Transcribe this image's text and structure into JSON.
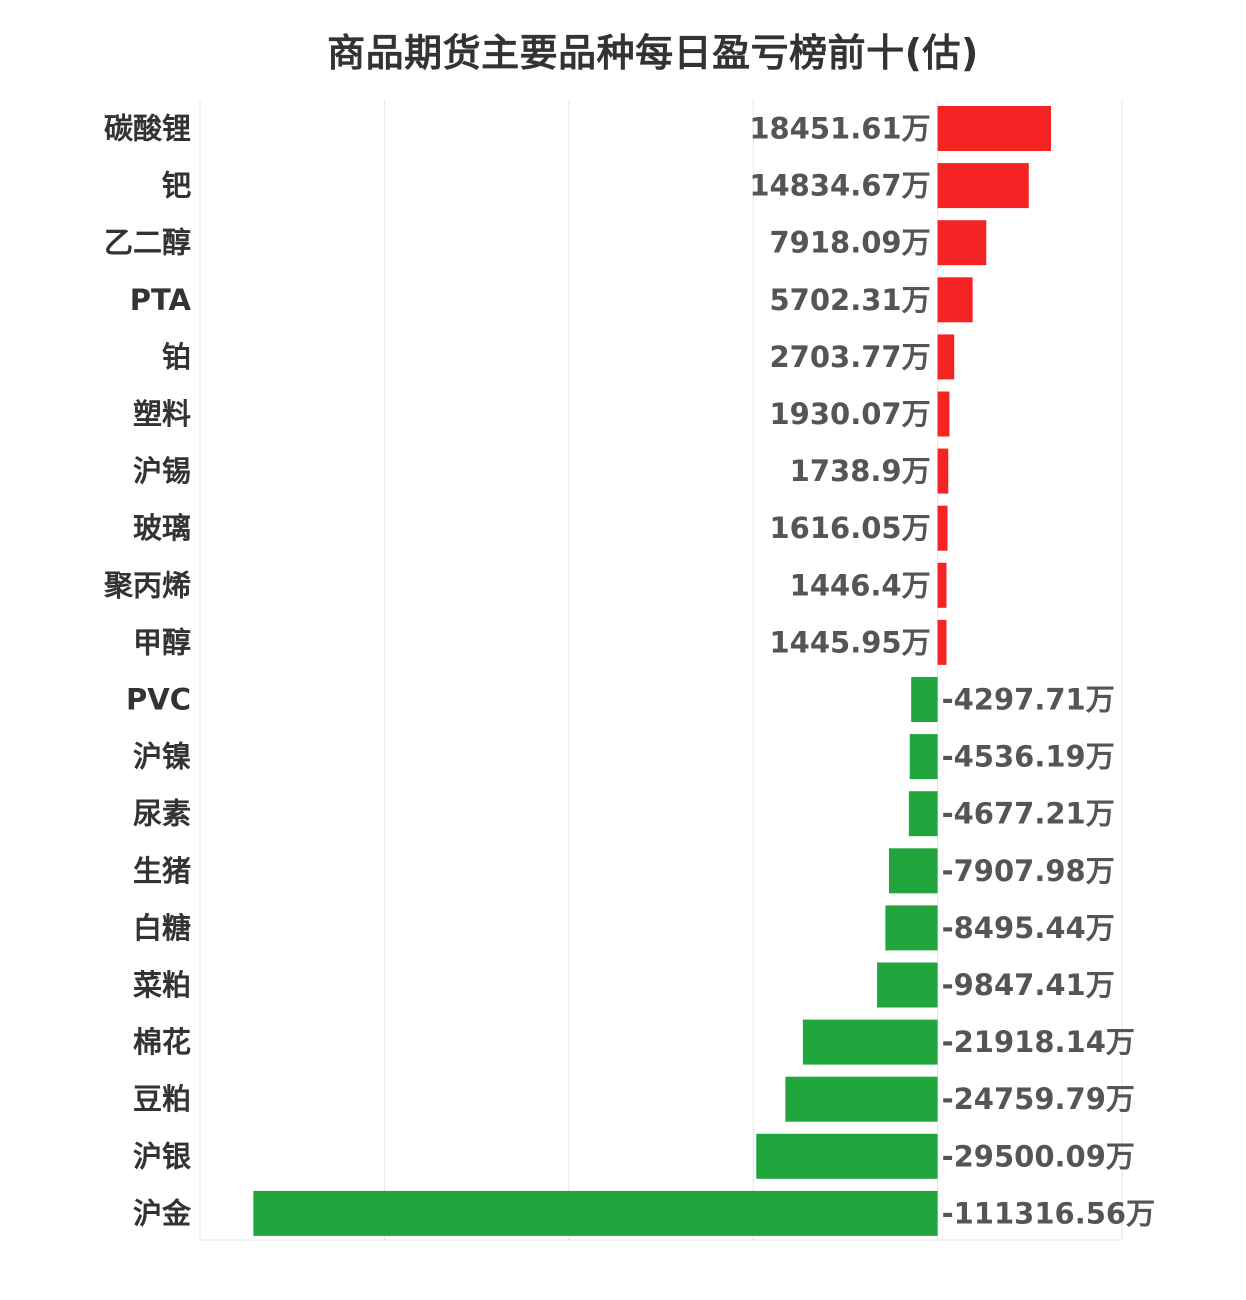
{
  "chart_data": {
    "type": "bar",
    "orientation": "horizontal",
    "title": "商品期货主要品种每日盈亏榜前十(估)",
    "unit": "万",
    "categories": [
      "碳酸锂",
      "钯",
      "乙二醇",
      "PTA",
      "铂",
      "塑料",
      "沪锡",
      "玻璃",
      "聚丙烯",
      "甲醇",
      "PVC",
      "沪镍",
      "尿素",
      "生猪",
      "白糖",
      "菜粕",
      "棉花",
      "豆粕",
      "沪银",
      "沪金"
    ],
    "values": [
      18451.61,
      14834.67,
      7918.09,
      5702.31,
      2703.77,
      1930.07,
      1738.9,
      1616.05,
      1446.4,
      1445.95,
      -4297.71,
      -4536.19,
      -4677.21,
      -7907.98,
      -8495.44,
      -9847.41,
      -21918.14,
      -24759.79,
      -29500.09,
      -111316.56
    ],
    "value_labels": [
      "18451.61万",
      "14834.67万",
      "7918.09万",
      "5702.31万",
      "2703.77万",
      "1930.07万",
      "1738.9万",
      "1616.05万",
      "1446.4万",
      "1445.95万",
      "-4297.71万",
      "-4536.19万",
      "-4677.21万",
      "-7907.98万",
      "-8495.44万",
      "-9847.41万",
      "-21918.14万",
      "-24759.79万",
      "-29500.09万",
      "-111316.56万"
    ],
    "xlim": [
      -120000,
      30000
    ],
    "grid": true,
    "colors": {
      "positive": "#f42424",
      "negative": "#20a63c",
      "grid": "#e6e6e6"
    }
  }
}
